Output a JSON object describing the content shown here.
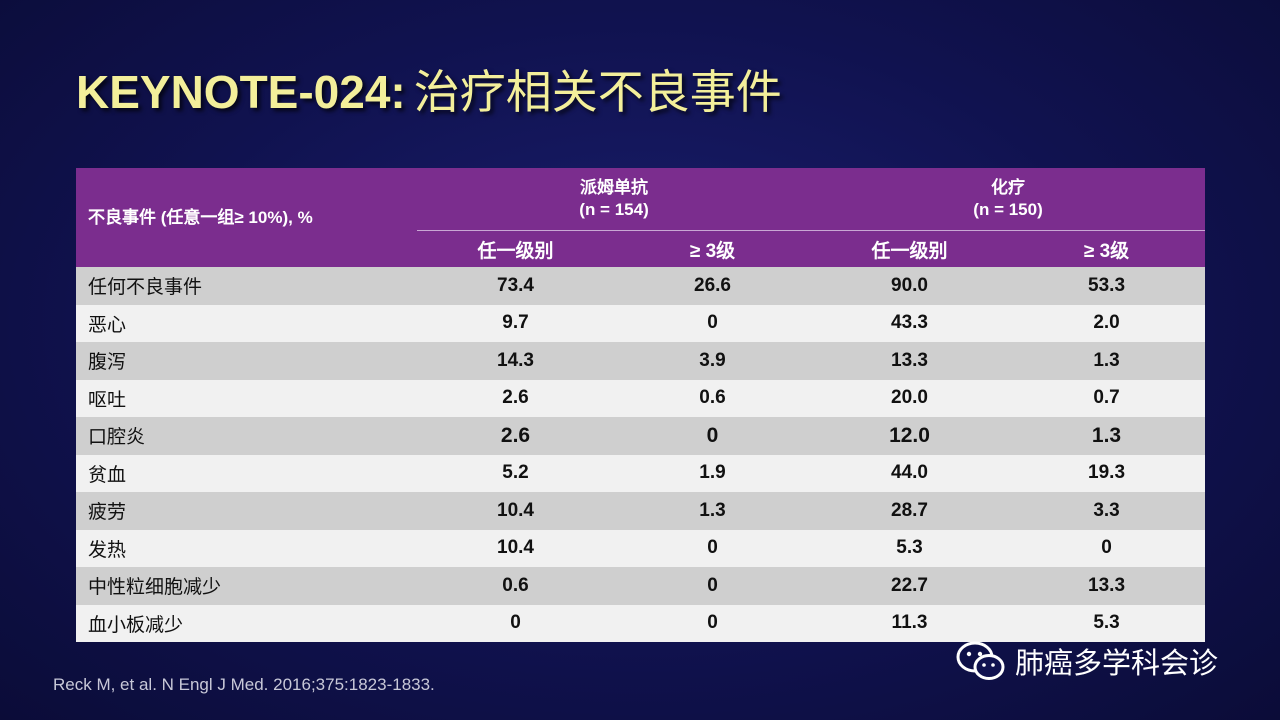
{
  "title": {
    "prefix": "KEYNOTE-024:",
    "main": "治疗相关不良事件"
  },
  "table": {
    "row_header": "不良事件 (任意一组≥ 10%), %",
    "groups": [
      {
        "name": "派姆单抗",
        "n": "(n = 154)"
      },
      {
        "name": "化疗",
        "n": "(n = 150)"
      }
    ],
    "subheaders": [
      "任一级别",
      "≥ 3级",
      "任一级别",
      "≥ 3级"
    ],
    "rows": [
      {
        "name": "任何不良事件",
        "values": [
          "73.4",
          "26.6",
          "90.0",
          "53.3"
        ]
      },
      {
        "name": "恶心",
        "values": [
          "9.7",
          "0",
          "43.3",
          "2.0"
        ]
      },
      {
        "name": "腹泻",
        "values": [
          "14.3",
          "3.9",
          "13.3",
          "1.3"
        ]
      },
      {
        "name": "呕吐",
        "values": [
          "2.6",
          "0.6",
          "20.0",
          "0.7"
        ]
      },
      {
        "name": "口腔炎",
        "values": [
          "2.6",
          "0",
          "12.0",
          "1.3"
        ]
      },
      {
        "name": "贫血",
        "values": [
          "5.2",
          "1.9",
          "44.0",
          "19.3"
        ]
      },
      {
        "name": "疲劳",
        "values": [
          "10.4",
          "1.3",
          "28.7",
          "3.3"
        ]
      },
      {
        "name": "发热",
        "values": [
          "10.4",
          "0",
          "5.3",
          "0"
        ]
      },
      {
        "name": "中性粒细胞减少",
        "values": [
          "0.6",
          "0",
          "22.7",
          "13.3"
        ]
      },
      {
        "name": "血小板减少",
        "values": [
          "0",
          "0",
          "11.3",
          "5.3"
        ]
      }
    ]
  },
  "reference": "Reck M, et al. N Engl J Med. 2016;375:1823-1833.",
  "watermark": {
    "text": "肺癌多学科会诊",
    "icon": "wechat-icon"
  },
  "colors": {
    "header": "#7b2d8e",
    "title": "#f3ef9a",
    "background": "#10124f"
  }
}
